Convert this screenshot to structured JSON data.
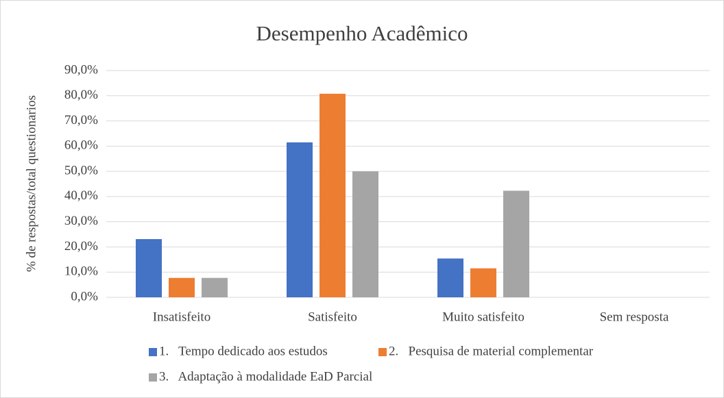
{
  "chart_data": {
    "type": "bar",
    "title": "Desempenho Acadêmico",
    "y_label": "% de respostas/total questionarios",
    "categories": [
      "Insatisfeito",
      "Satisfeito",
      "Muito satisfeito",
      "Sem resposta"
    ],
    "series": [
      {
        "name": "1.   Tempo dedicado aos estudos",
        "color": "#4472c4",
        "values": [
          23.1,
          61.5,
          15.4,
          0
        ]
      },
      {
        "name": "2.   Pesquisa de material complementar",
        "color": "#ed7d31",
        "values": [
          7.7,
          80.8,
          11.5,
          0
        ]
      },
      {
        "name": "3.   Adaptação à modalidade EaD Parcial",
        "color": "#a5a5a5",
        "values": [
          7.7,
          50.0,
          42.3,
          0
        ]
      }
    ],
    "ylim": [
      0,
      90
    ],
    "yticks": [
      {
        "value": 0,
        "label": "0,0%"
      },
      {
        "value": 10,
        "label": "10,0%"
      },
      {
        "value": 20,
        "label": "20,0%"
      },
      {
        "value": 30,
        "label": "30,0%"
      },
      {
        "value": 40,
        "label": "40,0%"
      },
      {
        "value": 50,
        "label": "50,0%"
      },
      {
        "value": 60,
        "label": "60,0%"
      },
      {
        "value": 70,
        "label": "70,0%"
      },
      {
        "value": 80,
        "label": "80,0%"
      },
      {
        "value": 90,
        "label": "90,0%"
      }
    ],
    "grid": true,
    "legend": "bottom"
  }
}
